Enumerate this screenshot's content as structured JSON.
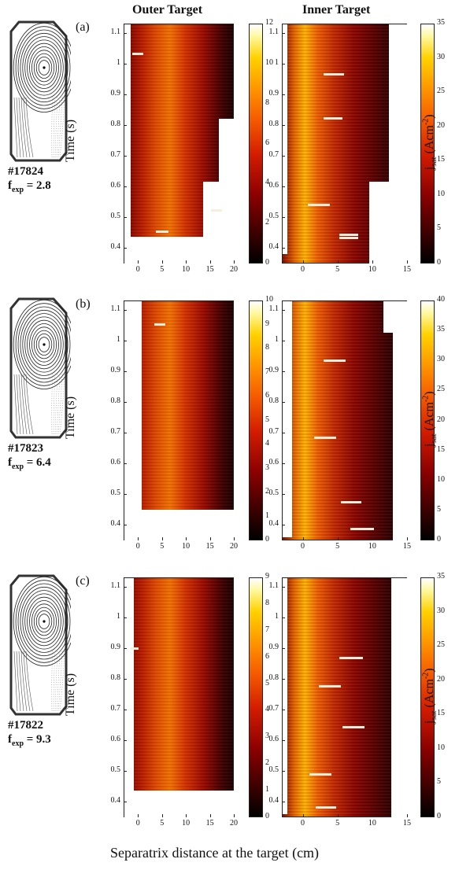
{
  "column_titles": {
    "outer": "Outer Target",
    "inner": "Inner Target"
  },
  "axis_labels": {
    "time": "Time (s)",
    "xlabel": "Separatrix distance at the target (cm)",
    "jsat": "j",
    "jsat_sub": "sat",
    "jsat_unit": "(Acm",
    "jsat_exp": "-2",
    "jsat_close": ")"
  },
  "panels": [
    {
      "letter": "(a)",
      "shot": "#17824",
      "fexp_label": "f",
      "fexp_sub": "exp",
      "fexp_value": "= 2.8",
      "outer_cbar_ticks": [
        "0",
        "2",
        "4",
        "6",
        "8",
        "10",
        "12"
      ],
      "inner_cbar_ticks": [
        "0",
        "5",
        "10",
        "15",
        "20",
        "25",
        "30",
        "35"
      ]
    },
    {
      "letter": "(b)",
      "shot": "#17823",
      "fexp_label": "f",
      "fexp_sub": "exp",
      "fexp_value": "= 6.4",
      "outer_cbar_ticks": [
        "0",
        "1",
        "2",
        "3",
        "4",
        "5",
        "6",
        "7",
        "8",
        "9",
        "10"
      ],
      "inner_cbar_ticks": [
        "0",
        "5",
        "10",
        "15",
        "20",
        "25",
        "30",
        "35",
        "40"
      ]
    },
    {
      "letter": "(c)",
      "shot": "#17822",
      "fexp_label": "f",
      "fexp_sub": "exp",
      "fexp_value": "= 9.3",
      "outer_cbar_ticks": [
        "0",
        "1",
        "2",
        "3",
        "4",
        "5",
        "6",
        "7",
        "8",
        "9"
      ],
      "inner_cbar_ticks": [
        "0",
        "5",
        "10",
        "15",
        "20",
        "25",
        "30",
        "35"
      ]
    }
  ],
  "time_ticks": [
    "0.4",
    "0.5",
    "0.6",
    "0.7",
    "0.8",
    "0.9",
    "1",
    "1.1"
  ],
  "outer_x_ticks": [
    "0",
    "5",
    "10",
    "15",
    "20"
  ],
  "inner_x_ticks": [
    "0",
    "5",
    "10",
    "15"
  ],
  "chart_data": [
    {
      "type": "heatmap",
      "panel": "(a)",
      "target": "Outer Target",
      "xlim": [
        -3,
        20
      ],
      "ylim": [
        0.35,
        1.13
      ],
      "clim": [
        0,
        12
      ],
      "xlabel": "Separatrix distance at the target (cm)",
      "ylabel": "Time (s)",
      "colorbar_label": "jsat (Acm-2)"
    },
    {
      "type": "heatmap",
      "panel": "(a)",
      "target": "Inner Target",
      "xlim": [
        -3,
        15
      ],
      "ylim": [
        0.35,
        1.13
      ],
      "clim": [
        0,
        35
      ],
      "xlabel": "Separatrix distance at the target (cm)",
      "ylabel": "Time (s)",
      "colorbar_label": "jsat (Acm-2)"
    },
    {
      "type": "heatmap",
      "panel": "(b)",
      "target": "Outer Target",
      "xlim": [
        -3,
        20
      ],
      "ylim": [
        0.35,
        1.13
      ],
      "clim": [
        0,
        10
      ],
      "xlabel": "Separatrix distance at the target (cm)",
      "ylabel": "Time (s)",
      "colorbar_label": "jsat (Acm-2)"
    },
    {
      "type": "heatmap",
      "panel": "(b)",
      "target": "Inner Target",
      "xlim": [
        -3,
        15
      ],
      "ylim": [
        0.35,
        1.13
      ],
      "clim": [
        0,
        40
      ],
      "xlabel": "Separatrix distance at the target (cm)",
      "ylabel": "Time (s)",
      "colorbar_label": "jsat (Acm-2)"
    },
    {
      "type": "heatmap",
      "panel": "(c)",
      "target": "Outer Target",
      "xlim": [
        -3,
        20
      ],
      "ylim": [
        0.35,
        1.13
      ],
      "clim": [
        0,
        9
      ],
      "xlabel": "Separatrix distance at the target (cm)",
      "ylabel": "Time (s)",
      "colorbar_label": "jsat (Acm-2)"
    },
    {
      "type": "heatmap",
      "panel": "(c)",
      "target": "Inner Target",
      "xlim": [
        -3,
        15
      ],
      "ylim": [
        0.35,
        1.13
      ],
      "clim": [
        0,
        35
      ],
      "xlabel": "Separatrix distance at the target (cm)",
      "ylabel": "Time (s)",
      "colorbar_label": "jsat (Acm-2)"
    }
  ]
}
